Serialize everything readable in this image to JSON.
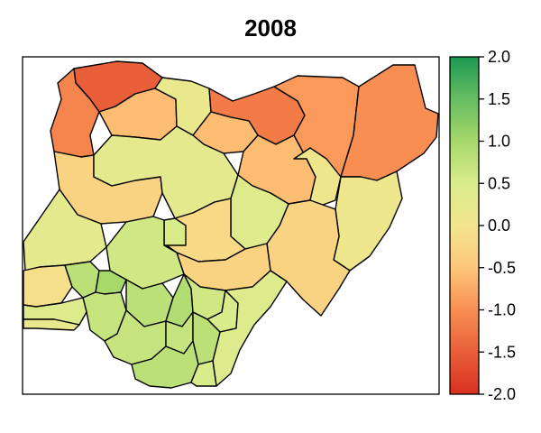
{
  "map": {
    "title": "2008",
    "colorbar": {
      "min": -2.0,
      "max": 2.0,
      "ticks": [
        "2.0",
        "1.5",
        "1.0",
        "0.5",
        "0.0",
        "-0.5",
        "-1.0",
        "-1.5",
        "-2.0"
      ],
      "tick_values": [
        2.0,
        1.5,
        1.0,
        0.5,
        0.0,
        -0.5,
        -1.0,
        -1.5,
        -2.0
      ],
      "color_stops": [
        {
          "value": -2.0,
          "color": "#d7301f"
        },
        {
          "value": -1.0,
          "color": "#f98e52"
        },
        {
          "value": -0.5,
          "color": "#fdc77a"
        },
        {
          "value": 0.0,
          "color": "#f3e58e"
        },
        {
          "value": 0.5,
          "color": "#d9ec8b"
        },
        {
          "value": 1.0,
          "color": "#a6d86a"
        },
        {
          "value": 1.5,
          "color": "#66bd63"
        },
        {
          "value": 2.0,
          "color": "#1a9850"
        }
      ]
    },
    "background_color": "#ffffff",
    "border_color": "#000000"
  }
}
